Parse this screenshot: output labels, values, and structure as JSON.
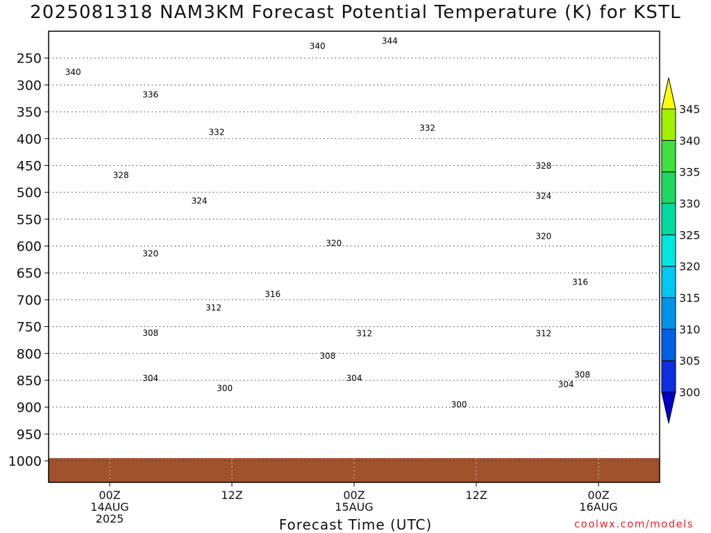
{
  "header": {
    "title": "2025081318 NAM3KM Forecast Potential Temperature (K) for KSTL"
  },
  "footer": {
    "credit": "coolwx.com/models"
  },
  "chart_data": {
    "type": "heatmap",
    "title": "2025081318 NAM3KM Forecast Potential Temperature (K) for KSTL",
    "xlabel": "Forecast Time (UTC)",
    "ylabel": "",
    "x_ticks": [
      {
        "h": 6,
        "lines": [
          "00Z",
          "14AUG",
          "2025"
        ]
      },
      {
        "h": 18,
        "lines": [
          "12Z"
        ]
      },
      {
        "h": 30,
        "lines": [
          "00Z",
          "15AUG"
        ]
      },
      {
        "h": 42,
        "lines": [
          "12Z"
        ]
      },
      {
        "h": 54,
        "lines": [
          "00Z",
          "16AUG"
        ]
      }
    ],
    "x_range_hours": [
      0,
      60
    ],
    "y_ticks": [
      250,
      300,
      350,
      400,
      450,
      500,
      550,
      600,
      650,
      700,
      750,
      800,
      850,
      900,
      950,
      1000
    ],
    "y_range_hpa": [
      200,
      1040
    ],
    "grid": "dotted",
    "colorbar": {
      "levels": [
        300,
        305,
        310,
        315,
        320,
        325,
        330,
        335,
        340,
        345
      ],
      "colors": [
        "#0000cc",
        "#0c2ee0",
        "#0060e4",
        "#0094e8",
        "#00c8f0",
        "#00e6e0",
        "#00dca0",
        "#1ed860",
        "#40e040",
        "#a0f000",
        "#ffff00"
      ]
    },
    "contour_levels": [
      300,
      304,
      308,
      312,
      316,
      320,
      324,
      328,
      332,
      336,
      340,
      344
    ],
    "contour_labels": [
      {
        "v": 344,
        "h": 33.5,
        "p": 218
      },
      {
        "v": 340,
        "h": 26.4,
        "p": 228
      },
      {
        "v": 340,
        "h": 2.4,
        "p": 276
      },
      {
        "v": 336,
        "h": 10.0,
        "p": 318
      },
      {
        "v": 332,
        "h": 16.5,
        "p": 388
      },
      {
        "v": 332,
        "h": 37.2,
        "p": 380
      },
      {
        "v": 328,
        "h": 7.1,
        "p": 468
      },
      {
        "v": 328,
        "h": 48.6,
        "p": 451
      },
      {
        "v": 324,
        "h": 14.8,
        "p": 516
      },
      {
        "v": 324,
        "h": 48.6,
        "p": 507
      },
      {
        "v": 320,
        "h": 28.0,
        "p": 595
      },
      {
        "v": 320,
        "h": 48.6,
        "p": 582
      },
      {
        "v": 320,
        "h": 10.0,
        "p": 614
      },
      {
        "v": 316,
        "h": 52.2,
        "p": 667
      },
      {
        "v": 316,
        "h": 22.0,
        "p": 690
      },
      {
        "v": 312,
        "h": 16.2,
        "p": 715
      },
      {
        "v": 312,
        "h": 31.0,
        "p": 763
      },
      {
        "v": 312,
        "h": 48.6,
        "p": 763
      },
      {
        "v": 308,
        "h": 10.0,
        "p": 762
      },
      {
        "v": 308,
        "h": 27.4,
        "p": 805
      },
      {
        "v": 308,
        "h": 52.4,
        "p": 840
      },
      {
        "v": 304,
        "h": 10.0,
        "p": 846
      },
      {
        "v": 304,
        "h": 30.0,
        "p": 846
      },
      {
        "v": 304,
        "h": 50.8,
        "p": 858
      },
      {
        "v": 300,
        "h": 17.3,
        "p": 865
      },
      {
        "v": 300,
        "h": 40.3,
        "p": 895
      }
    ]
  }
}
